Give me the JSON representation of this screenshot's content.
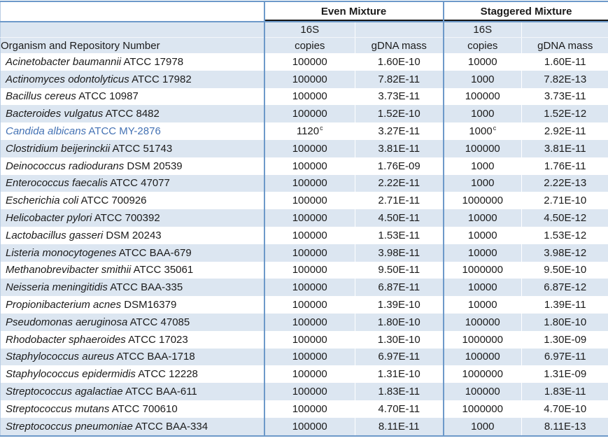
{
  "table": {
    "group_headers": {
      "even": "Even Mixture",
      "staggered": "Staggered Mixture"
    },
    "column_headers": {
      "organism": "Organism and Repository Number",
      "sub_top": "16S",
      "copies": "copies",
      "gdna": "gDNA mass"
    },
    "colors": {
      "stripe": "#dce6f1",
      "border_blue": "#6d99c9",
      "highlight_text": "#4472b4",
      "header_underline": "#151515"
    },
    "footnote_marker": "c",
    "rows": [
      {
        "organism": "Acinetobacter baumannii",
        "repo": "ATCC 17978",
        "even_copies": "100000",
        "even_copies_sup": "",
        "even_gdna": "1.60E-10",
        "stag_copies": "10000",
        "stag_copies_sup": "",
        "stag_gdna": "1.60E-11",
        "highlight": false
      },
      {
        "organism": "Actinomyces odontolyticus",
        "repo": "ATCC 17982",
        "even_copies": "100000",
        "even_copies_sup": "",
        "even_gdna": "7.82E-11",
        "stag_copies": "1000",
        "stag_copies_sup": "",
        "stag_gdna": "7.82E-13",
        "highlight": false
      },
      {
        "organism": "Bacillus cereus",
        "repo": "ATCC 10987",
        "even_copies": "100000",
        "even_copies_sup": "",
        "even_gdna": "3.73E-11",
        "stag_copies": "100000",
        "stag_copies_sup": "",
        "stag_gdna": "3.73E-11",
        "highlight": false
      },
      {
        "organism": "Bacteroides vulgatus",
        "repo": "ATCC 8482",
        "even_copies": "100000",
        "even_copies_sup": "",
        "even_gdna": "1.52E-10",
        "stag_copies": "1000",
        "stag_copies_sup": "",
        "stag_gdna": "1.52E-12",
        "highlight": false
      },
      {
        "organism": "Candida albicans",
        "repo": "ATCC MY-2876",
        "even_copies": "1120",
        "even_copies_sup": "c",
        "even_gdna": "3.27E-11",
        "stag_copies": "1000",
        "stag_copies_sup": "c",
        "stag_gdna": "2.92E-11",
        "highlight": true
      },
      {
        "organism": "Clostridium beijerinckii",
        "repo": "ATCC 51743",
        "even_copies": "100000",
        "even_copies_sup": "",
        "even_gdna": "3.81E-11",
        "stag_copies": "100000",
        "stag_copies_sup": "",
        "stag_gdna": "3.81E-11",
        "highlight": false
      },
      {
        "organism": "Deinococcus radiodurans",
        "repo": "DSM 20539",
        "even_copies": "100000",
        "even_copies_sup": "",
        "even_gdna": "1.76E-09",
        "stag_copies": "1000",
        "stag_copies_sup": "",
        "stag_gdna": "1.76E-11",
        "highlight": false
      },
      {
        "organism": "Enterococcus faecalis",
        "repo": "ATCC 47077",
        "even_copies": "100000",
        "even_copies_sup": "",
        "even_gdna": "2.22E-11",
        "stag_copies": "1000",
        "stag_copies_sup": "",
        "stag_gdna": "2.22E-13",
        "highlight": false
      },
      {
        "organism": "Escherichia coli",
        "repo": "ATCC 700926",
        "even_copies": "100000",
        "even_copies_sup": "",
        "even_gdna": "2.71E-11",
        "stag_copies": "1000000",
        "stag_copies_sup": "",
        "stag_gdna": "2.71E-10",
        "highlight": false
      },
      {
        "organism": "Helicobacter pylori",
        "repo": "ATCC 700392",
        "even_copies": "100000",
        "even_copies_sup": "",
        "even_gdna": "4.50E-11",
        "stag_copies": "10000",
        "stag_copies_sup": "",
        "stag_gdna": "4.50E-12",
        "highlight": false
      },
      {
        "organism": "Lactobacillus gasseri",
        "repo": "DSM 20243",
        "even_copies": "100000",
        "even_copies_sup": "",
        "even_gdna": "1.53E-11",
        "stag_copies": "10000",
        "stag_copies_sup": "",
        "stag_gdna": "1.53E-12",
        "highlight": false
      },
      {
        "organism": "Listeria monocytogenes",
        "repo": "ATCC BAA-679",
        "even_copies": "100000",
        "even_copies_sup": "",
        "even_gdna": "3.98E-11",
        "stag_copies": "10000",
        "stag_copies_sup": "",
        "stag_gdna": "3.98E-12",
        "highlight": false
      },
      {
        "organism": "Methanobrevibacter smithii",
        "repo": "ATCC 35061",
        "even_copies": "100000",
        "even_copies_sup": "",
        "even_gdna": "9.50E-11",
        "stag_copies": "1000000",
        "stag_copies_sup": "",
        "stag_gdna": "9.50E-10",
        "highlight": false
      },
      {
        "organism": "Neisseria meningitidis",
        "repo": "ATCC BAA-335",
        "even_copies": "100000",
        "even_copies_sup": "",
        "even_gdna": "6.87E-11",
        "stag_copies": "10000",
        "stag_copies_sup": "",
        "stag_gdna": "6.87E-12",
        "highlight": false
      },
      {
        "organism": "Propionibacterium acnes",
        "repo": "DSM16379",
        "even_copies": "100000",
        "even_copies_sup": "",
        "even_gdna": "1.39E-10",
        "stag_copies": "10000",
        "stag_copies_sup": "",
        "stag_gdna": "1.39E-11",
        "highlight": false
      },
      {
        "organism": "Pseudomonas aeruginosa",
        "repo": "ATCC 47085",
        "even_copies": "100000",
        "even_copies_sup": "",
        "even_gdna": "1.80E-10",
        "stag_copies": "100000",
        "stag_copies_sup": "",
        "stag_gdna": "1.80E-10",
        "highlight": false
      },
      {
        "organism": "Rhodobacter sphaeroides",
        "repo": "ATCC 17023",
        "even_copies": "100000",
        "even_copies_sup": "",
        "even_gdna": "1.30E-10",
        "stag_copies": "1000000",
        "stag_copies_sup": "",
        "stag_gdna": "1.30E-09",
        "highlight": false
      },
      {
        "organism": "Staphylococcus aureus",
        "repo": "ATCC BAA-1718",
        "even_copies": "100000",
        "even_copies_sup": "",
        "even_gdna": "6.97E-11",
        "stag_copies": "100000",
        "stag_copies_sup": "",
        "stag_gdna": "6.97E-11",
        "highlight": false
      },
      {
        "organism": "Staphylococcus epidermidis",
        "repo": "ATCC 12228",
        "even_copies": "100000",
        "even_copies_sup": "",
        "even_gdna": "1.31E-10",
        "stag_copies": "1000000",
        "stag_copies_sup": "",
        "stag_gdna": "1.31E-09",
        "highlight": false
      },
      {
        "organism": "Streptococcus agalactiae",
        "repo": "ATCC BAA-611",
        "even_copies": "100000",
        "even_copies_sup": "",
        "even_gdna": "1.83E-11",
        "stag_copies": "100000",
        "stag_copies_sup": "",
        "stag_gdna": "1.83E-11",
        "highlight": false
      },
      {
        "organism": "Streptococcus mutans",
        "repo": "ATCC 700610",
        "even_copies": "100000",
        "even_copies_sup": "",
        "even_gdna": "4.70E-11",
        "stag_copies": "1000000",
        "stag_copies_sup": "",
        "stag_gdna": "4.70E-10",
        "highlight": false
      },
      {
        "organism": "Streptococcus pneumoniae",
        "repo": "ATCC BAA-334",
        "even_copies": "100000",
        "even_copies_sup": "",
        "even_gdna": "8.11E-11",
        "stag_copies": "1000",
        "stag_copies_sup": "",
        "stag_gdna": "8.11E-13",
        "highlight": false
      }
    ]
  }
}
